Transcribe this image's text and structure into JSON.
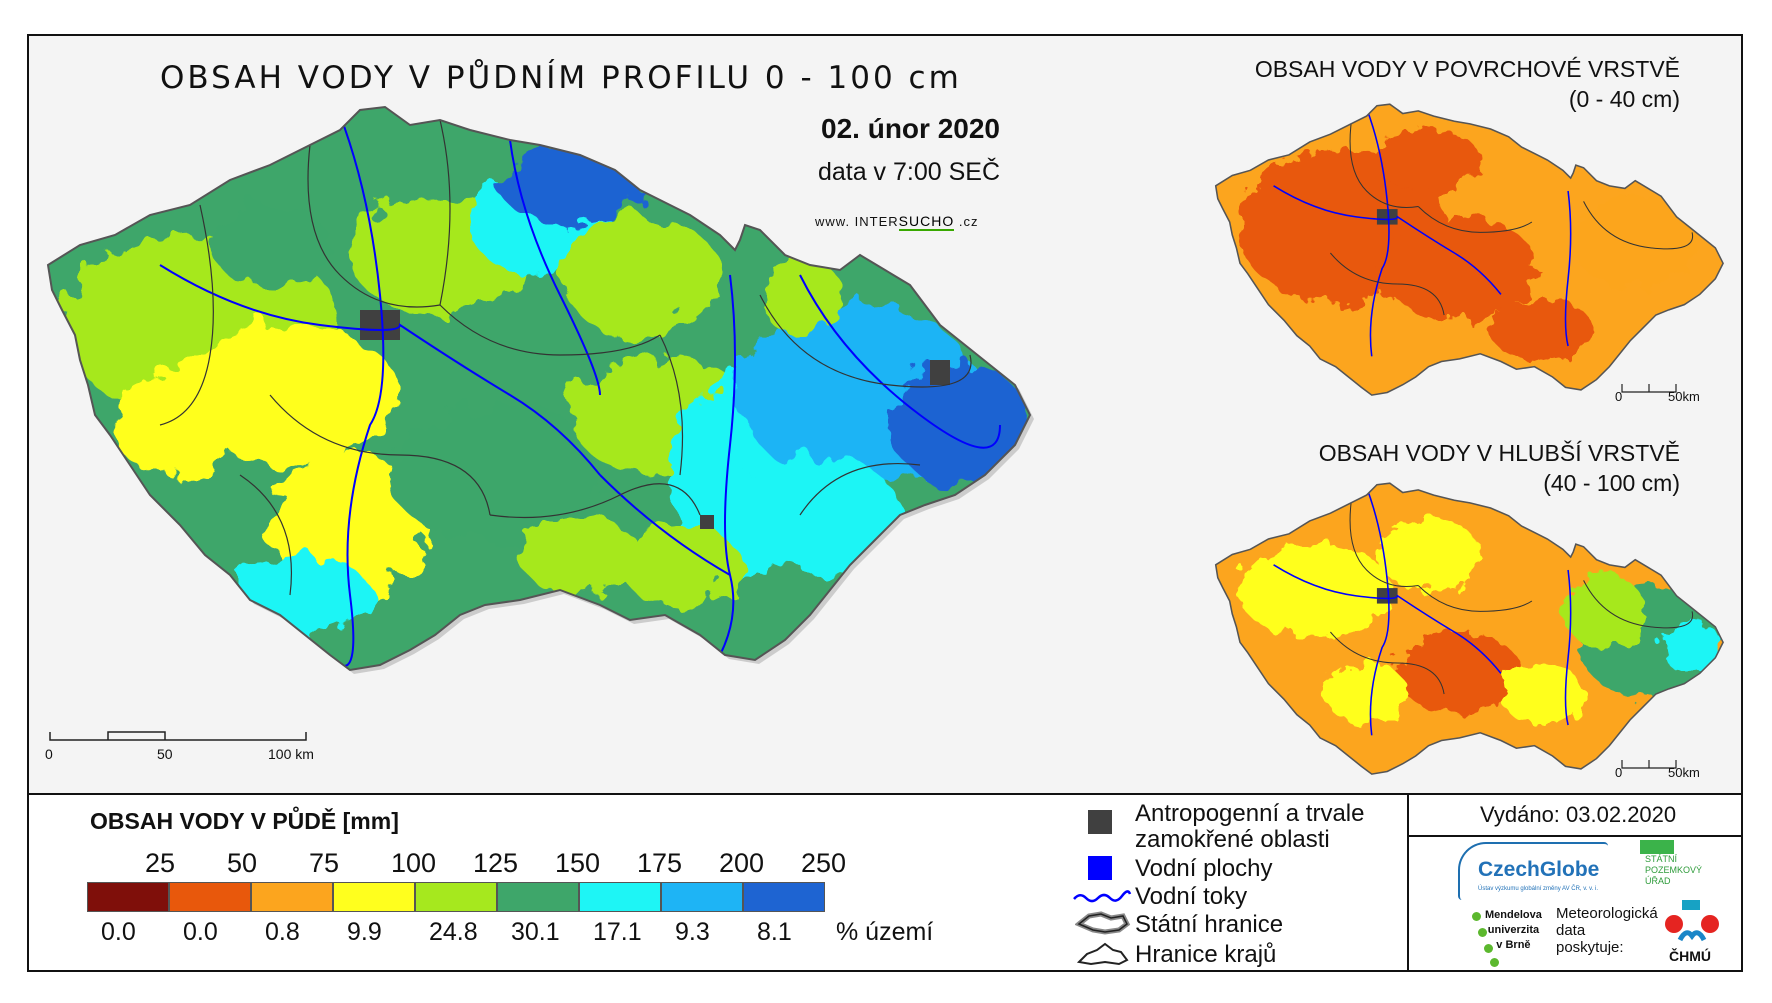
{
  "main": {
    "title": "OBSAH VODY V PŮDNÍM PROFILU 0 - 100 cm",
    "date": "02. únor 2020",
    "data_time": "data v 7:00 SEČ",
    "website_prefix": "www. INTER",
    "website_accent": "SUCHO",
    "website_suffix": " .cz",
    "scale": [
      "0",
      "50",
      "100 km"
    ]
  },
  "inset_top": {
    "title_line1": "OBSAH VODY V POVRCHOVÉ VRSTVĚ",
    "title_line2": "(0 - 40 cm)",
    "scale": [
      "0",
      "50km"
    ]
  },
  "inset_bottom": {
    "title_line1": "OBSAH VODY V HLUBŠÍ VRSTVĚ",
    "title_line2": "(40 - 100 cm)",
    "scale": [
      "0",
      "50km"
    ]
  },
  "legend": {
    "title": "OBSAH VODY V PŮDĚ [mm]",
    "breaks": [
      "25",
      "50",
      "75",
      "100",
      "125",
      "150",
      "175",
      "200",
      "250"
    ],
    "classes": [
      {
        "color": "#7f0f0a",
        "pct": "0.0"
      },
      {
        "color": "#e8580c",
        "pct": "0.0"
      },
      {
        "color": "#fca51e",
        "pct": "0.8"
      },
      {
        "color": "#ffff1e",
        "pct": "9.9"
      },
      {
        "color": "#a6e81e",
        "pct": "24.8"
      },
      {
        "color": "#3ea66a",
        "pct": "30.1"
      },
      {
        "color": "#1ef5f5",
        "pct": "17.1"
      },
      {
        "color": "#1eb4f5",
        "pct": "9.3"
      },
      {
        "color": "#1e64d2",
        "pct": "8.1"
      }
    ],
    "pct_label": "% území"
  },
  "symbols": {
    "anthropogenic": "Antropogenní a trvale",
    "anthropogenic2": "zamokřené oblasti",
    "water_bodies": "Vodní plochy",
    "rivers": "Vodní toky",
    "state_border": "Státní hranice",
    "region_border": "Hranice krajů"
  },
  "footer": {
    "issued": "Vydáno: 03.02.2020",
    "czechglobe": "CzechGlobe",
    "czechglobe_sub": "Ústav výzkumu globální změny AV ČR, v. v. i.",
    "spu_line1": "STÁTNÍ",
    "spu_line2": "POZEMKOVÝ",
    "spu_line3": "ÚŘAD",
    "mendel_line1": "Mendelova",
    "mendel_line2": "univerzita",
    "mendel_line3": "v Brně",
    "meteo_line1": "Meteorologická",
    "meteo_line2": "data",
    "meteo_line3": "poskytuje:",
    "chmu": "ČHMÚ"
  },
  "colors": {
    "brown": "#7f0f0a",
    "orange_dark": "#e8580c",
    "orange": "#fca51e",
    "yellow": "#ffff1e",
    "light_green": "#a6e81e",
    "green": "#3ea66a",
    "cyan": "#1ef5f5",
    "sky": "#1eb4f5",
    "blue": "#1e64d2",
    "anthro": "#404040",
    "water": "#0000ff"
  }
}
